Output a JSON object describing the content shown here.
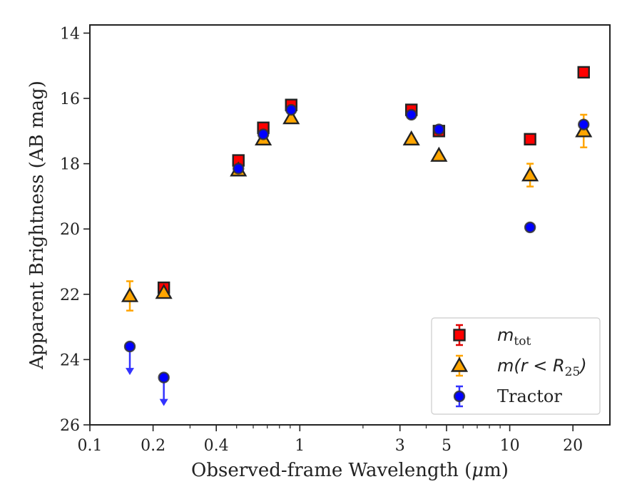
{
  "chart_data": {
    "type": "scatter",
    "xscale": "log",
    "xlim": [
      0.1,
      30
    ],
    "ylim": [
      26,
      13.75
    ],
    "y_inverted": true,
    "xlabel_prefix": "Observed-frame Wavelength (",
    "xlabel_mu": "μ",
    "xlabel_suffix": "m)",
    "ylabel": "Apparent Brightness (AB mag)",
    "xticks": [
      {
        "value": 0.1,
        "label": "0.1"
      },
      {
        "value": 0.2,
        "label": "0.2"
      },
      {
        "value": 0.4,
        "label": "0.4"
      },
      {
        "value": 1,
        "label": "1"
      },
      {
        "value": 3,
        "label": "3"
      },
      {
        "value": 5,
        "label": "5"
      },
      {
        "value": 10,
        "label": "10"
      },
      {
        "value": 20,
        "label": "20"
      }
    ],
    "yticks": [
      {
        "value": 14,
        "label": "14"
      },
      {
        "value": 16,
        "label": "16"
      },
      {
        "value": 18,
        "label": "18"
      },
      {
        "value": 20,
        "label": "20"
      },
      {
        "value": 22,
        "label": "22"
      },
      {
        "value": 24,
        "label": "24"
      },
      {
        "value": 26,
        "label": "26"
      }
    ],
    "legend_position": "lower-right",
    "series": [
      {
        "name": "m_tot",
        "legend_main": "m",
        "legend_sub": "tot",
        "marker": "square",
        "color": "#ff0000",
        "errcolor": "#e00000",
        "points": [
          {
            "x": 0.225,
            "y": 21.8,
            "err": 0.1
          },
          {
            "x": 0.51,
            "y": 17.9,
            "err": 0.08
          },
          {
            "x": 0.67,
            "y": 16.9,
            "err": 0.08
          },
          {
            "x": 0.91,
            "y": 16.2,
            "err": 0.08
          },
          {
            "x": 3.4,
            "y": 16.35,
            "err": 0.05
          },
          {
            "x": 4.6,
            "y": 17.0,
            "err": 0.05
          },
          {
            "x": 12.5,
            "y": 17.25,
            "err": 0.1
          },
          {
            "x": 22.5,
            "y": 15.2,
            "err": 0.1
          }
        ]
      },
      {
        "name": "m(r < R25)",
        "legend_main": "m(r < R",
        "legend_sub": "25",
        "legend_tail": ")",
        "marker": "triangle",
        "color": "#ffa500",
        "errcolor": "#ffa500",
        "points": [
          {
            "x": 0.155,
            "y": 22.05,
            "err": 0.45
          },
          {
            "x": 0.225,
            "y": 21.95,
            "err": 0.1
          },
          {
            "x": 0.51,
            "y": 18.2,
            "err": 0.08
          },
          {
            "x": 0.67,
            "y": 17.25,
            "err": 0.08
          },
          {
            "x": 0.91,
            "y": 16.6,
            "err": 0.08
          },
          {
            "x": 3.4,
            "y": 17.25,
            "err": 0.05
          },
          {
            "x": 4.6,
            "y": 17.75,
            "err": 0.05
          },
          {
            "x": 12.5,
            "y": 18.35,
            "err": 0.35
          },
          {
            "x": 22.5,
            "y": 17.0,
            "err": 0.5
          }
        ]
      },
      {
        "name": "Tractor",
        "legend_main": "Tractor",
        "marker": "circle",
        "color": "#0000ff",
        "errcolor": "#3333ff",
        "points": [
          {
            "x": 0.155,
            "y": 23.6,
            "upper_limit": true
          },
          {
            "x": 0.225,
            "y": 24.55,
            "upper_limit": true
          },
          {
            "x": 0.51,
            "y": 18.15,
            "err": 0.08
          },
          {
            "x": 0.67,
            "y": 17.1,
            "err": 0.08
          },
          {
            "x": 0.91,
            "y": 16.35,
            "err": 0.08
          },
          {
            "x": 3.4,
            "y": 16.5,
            "err": 0.05
          },
          {
            "x": 4.6,
            "y": 16.95,
            "err": 0.05
          },
          {
            "x": 12.5,
            "y": 19.95,
            "err": 0.05
          },
          {
            "x": 22.5,
            "y": 16.8,
            "err": 0.1
          }
        ]
      }
    ]
  }
}
